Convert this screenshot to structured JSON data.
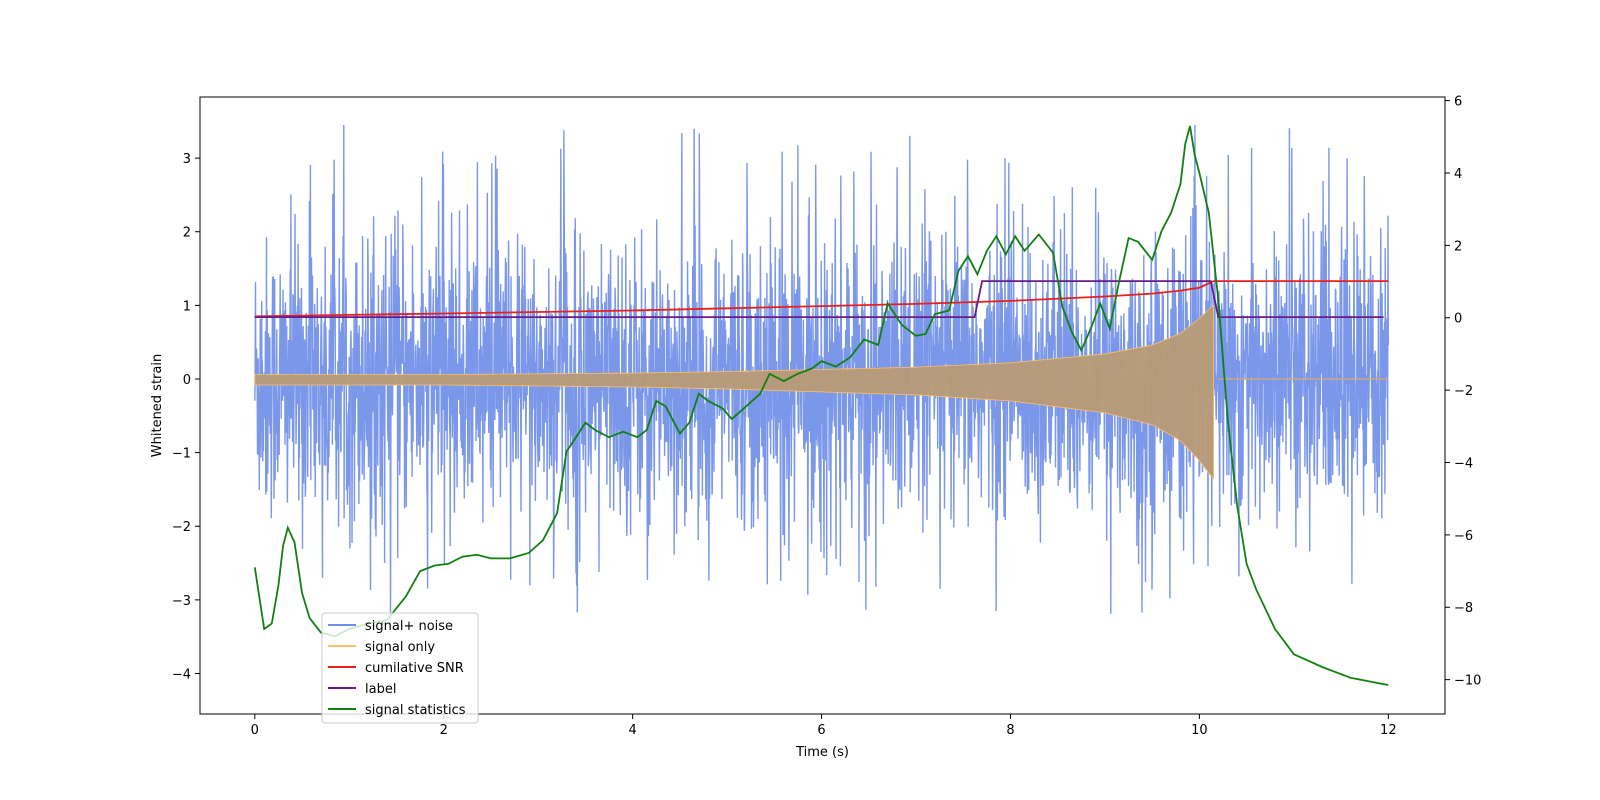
{
  "chart_data": {
    "type": "line",
    "title": "",
    "xlabel": "Time (s)",
    "ylabel": "Whitened strain",
    "y2label": "",
    "xlim": [
      -0.58,
      12.6
    ],
    "ylim": [
      -4.55,
      3.83
    ],
    "y2lim": [
      -10.95,
      6.1
    ],
    "xticks": [
      0,
      2,
      4,
      6,
      8,
      10,
      12
    ],
    "yticks": [
      -4,
      -3,
      -2,
      -1,
      0,
      1,
      2,
      3
    ],
    "y2ticks": [
      -10,
      -8,
      -6,
      -4,
      -2,
      0,
      2,
      4,
      6
    ],
    "grid": false,
    "legend_position": "lower-left",
    "series": [
      {
        "name": "signal+ noise",
        "axis": "left",
        "color": "#6f8ee8",
        "style": "dense-noise",
        "noise_envelope": {
          "x_range": [
            0,
            12
          ],
          "typical_low": -1.9,
          "typical_high": 1.9,
          "peak_high": 3.45,
          "peak_low": -4.15
        }
      },
      {
        "name": "signal only",
        "axis": "left",
        "color": "#ffbf66",
        "style": "chirp",
        "points": [
          [
            0,
            0.06
          ],
          [
            1,
            0.06
          ],
          [
            2,
            0.06
          ],
          [
            3,
            0.07
          ],
          [
            4,
            0.08
          ],
          [
            5,
            0.1
          ],
          [
            6,
            0.13
          ],
          [
            7,
            0.16
          ],
          [
            8,
            0.22
          ],
          [
            9,
            0.34
          ],
          [
            9.5,
            0.46
          ],
          [
            9.8,
            0.62
          ],
          [
            10,
            0.82
          ],
          [
            10.1,
            0.95
          ],
          [
            10.15,
            1.0
          ],
          [
            10.2,
            0.0
          ],
          [
            12,
            0.0
          ]
        ]
      },
      {
        "name": "cumilative SNR",
        "axis": "left",
        "color": "#e8201c",
        "points": [
          [
            0,
            0.85
          ],
          [
            1,
            0.87
          ],
          [
            2,
            0.89
          ],
          [
            3,
            0.91
          ],
          [
            4,
            0.93
          ],
          [
            5,
            0.96
          ],
          [
            6,
            0.99
          ],
          [
            7,
            1.02
          ],
          [
            8,
            1.06
          ],
          [
            9,
            1.12
          ],
          [
            9.5,
            1.16
          ],
          [
            9.8,
            1.2
          ],
          [
            10,
            1.24
          ],
          [
            10.15,
            1.33
          ],
          [
            12,
            1.33
          ]
        ]
      },
      {
        "name": "label",
        "axis": "left",
        "color": "#6a1b8a",
        "points": [
          [
            0,
            0.84
          ],
          [
            7.62,
            0.84
          ],
          [
            7.7,
            1.33
          ],
          [
            10.12,
            1.33
          ],
          [
            10.2,
            0.84
          ],
          [
            11.95,
            0.84
          ]
        ]
      },
      {
        "name": "signal statistics",
        "axis": "right",
        "color": "#118011",
        "points": [
          [
            0,
            -6.9
          ],
          [
            0.1,
            -8.6
          ],
          [
            0.18,
            -8.45
          ],
          [
            0.25,
            -7.4
          ],
          [
            0.3,
            -6.3
          ],
          [
            0.35,
            -5.8
          ],
          [
            0.42,
            -6.2
          ],
          [
            0.5,
            -7.6
          ],
          [
            0.58,
            -8.3
          ],
          [
            0.7,
            -8.7
          ],
          [
            0.85,
            -8.8
          ],
          [
            1.0,
            -8.6
          ],
          [
            1.2,
            -8.45
          ],
          [
            1.4,
            -8.35
          ],
          [
            1.6,
            -7.7
          ],
          [
            1.75,
            -7.0
          ],
          [
            1.9,
            -6.85
          ],
          [
            2.05,
            -6.8
          ],
          [
            2.2,
            -6.6
          ],
          [
            2.35,
            -6.55
          ],
          [
            2.5,
            -6.65
          ],
          [
            2.7,
            -6.65
          ],
          [
            2.9,
            -6.5
          ],
          [
            3.05,
            -6.15
          ],
          [
            3.2,
            -5.4
          ],
          [
            3.3,
            -3.7
          ],
          [
            3.4,
            -3.3
          ],
          [
            3.5,
            -2.9
          ],
          [
            3.6,
            -3.1
          ],
          [
            3.75,
            -3.3
          ],
          [
            3.9,
            -3.15
          ],
          [
            4.05,
            -3.3
          ],
          [
            4.15,
            -3.1
          ],
          [
            4.25,
            -2.3
          ],
          [
            4.35,
            -2.45
          ],
          [
            4.5,
            -3.2
          ],
          [
            4.6,
            -2.9
          ],
          [
            4.7,
            -2.1
          ],
          [
            4.8,
            -2.3
          ],
          [
            4.95,
            -2.5
          ],
          [
            5.05,
            -2.8
          ],
          [
            5.2,
            -2.45
          ],
          [
            5.35,
            -2.1
          ],
          [
            5.45,
            -1.55
          ],
          [
            5.6,
            -1.75
          ],
          [
            5.75,
            -1.55
          ],
          [
            5.9,
            -1.4
          ],
          [
            6.0,
            -1.2
          ],
          [
            6.15,
            -1.35
          ],
          [
            6.3,
            -1.1
          ],
          [
            6.45,
            -0.6
          ],
          [
            6.6,
            -0.75
          ],
          [
            6.7,
            0.4
          ],
          [
            6.85,
            -0.2
          ],
          [
            7.0,
            -0.5
          ],
          [
            7.1,
            -0.45
          ],
          [
            7.2,
            0.1
          ],
          [
            7.35,
            0.2
          ],
          [
            7.45,
            1.3
          ],
          [
            7.55,
            1.7
          ],
          [
            7.65,
            1.2
          ],
          [
            7.75,
            1.85
          ],
          [
            7.85,
            2.25
          ],
          [
            7.95,
            1.75
          ],
          [
            8.05,
            2.25
          ],
          [
            8.15,
            1.85
          ],
          [
            8.3,
            2.3
          ],
          [
            8.45,
            1.8
          ],
          [
            8.55,
            0.3
          ],
          [
            8.65,
            -0.4
          ],
          [
            8.75,
            -0.9
          ],
          [
            8.85,
            -0.3
          ],
          [
            8.95,
            0.4
          ],
          [
            9.05,
            -0.3
          ],
          [
            9.15,
            1.0
          ],
          [
            9.25,
            2.2
          ],
          [
            9.35,
            2.1
          ],
          [
            9.5,
            1.6
          ],
          [
            9.6,
            2.4
          ],
          [
            9.7,
            2.9
          ],
          [
            9.8,
            3.7
          ],
          [
            9.85,
            4.8
          ],
          [
            9.9,
            5.3
          ],
          [
            9.95,
            4.5
          ],
          [
            10.0,
            4.0
          ],
          [
            10.1,
            2.9
          ],
          [
            10.2,
            0.5
          ],
          [
            10.3,
            -2.8
          ],
          [
            10.4,
            -5.2
          ],
          [
            10.5,
            -6.8
          ],
          [
            10.6,
            -7.5
          ],
          [
            10.8,
            -8.6
          ],
          [
            11.0,
            -9.3
          ],
          [
            11.3,
            -9.65
          ],
          [
            11.6,
            -9.95
          ],
          [
            11.9,
            -10.1
          ],
          [
            12.0,
            -10.15
          ]
        ]
      }
    ]
  }
}
